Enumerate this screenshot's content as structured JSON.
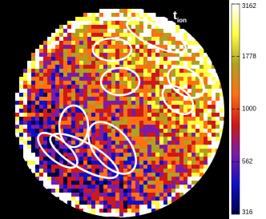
{
  "label": {
    "main": "t",
    "sub": "ion"
  },
  "colorbar": {
    "scale": "log",
    "lim": [
      316,
      3162
    ],
    "ticks": [
      316,
      562,
      1000,
      1778,
      3162
    ],
    "colors": [
      "#00004a",
      "#1010c8",
      "#7a1ca8",
      "#d01818",
      "#ff7010",
      "#b0a020",
      "#ffff40",
      "#ffffff"
    ]
  }
}
